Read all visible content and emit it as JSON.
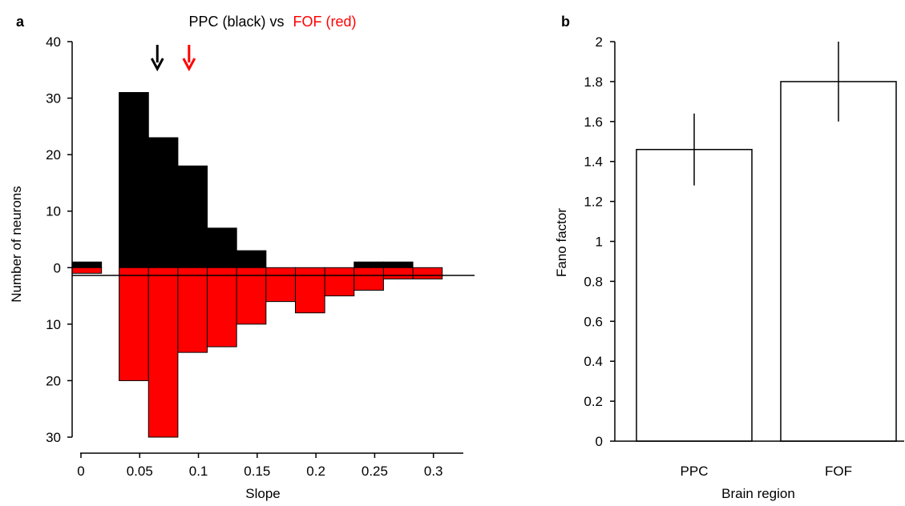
{
  "panel_labels": {
    "a": "a",
    "b": "b"
  },
  "colors": {
    "ppc": "#000000",
    "fof": "#ff0000",
    "bar_fill": "#ffffff"
  },
  "chart_data": [
    {
      "type": "bar",
      "panel": "a",
      "title_parts": [
        {
          "text": "PPC (black) vs",
          "color": "#000000"
        },
        {
          "text": "FOF (red)",
          "color": "#ff0000"
        }
      ],
      "xlabel": "Slope",
      "ylabel": "Number of neurons",
      "xlim": [
        -0.0075,
        0.335
      ],
      "xticks": [
        0,
        0.05,
        0.1,
        0.15,
        0.2,
        0.25,
        0.3
      ],
      "xtick_labels": [
        "0",
        "0.05",
        "0.1",
        "0.15",
        "0.2",
        "0.25",
        "0.3"
      ],
      "ylim": [
        -30,
        40
      ],
      "yticks": [
        40,
        30,
        20,
        10,
        0,
        -10,
        -20,
        -30
      ],
      "ytick_labels": [
        "40",
        "30",
        "20",
        "10",
        "0",
        "10",
        "20",
        "30"
      ],
      "bin_width": 0.025,
      "series": [
        {
          "name": "PPC",
          "color": "#000000",
          "direction": "up",
          "bin_starts": [
            -0.0075,
            0.0325,
            0.0575,
            0.0825,
            0.1075,
            0.1325,
            0.2325,
            0.2575
          ],
          "values": [
            1,
            31,
            23,
            18,
            7,
            3,
            1,
            1
          ]
        },
        {
          "name": "FOF",
          "color": "#ff0000",
          "direction": "down",
          "bin_starts": [
            -0.0075,
            0.0325,
            0.0575,
            0.0825,
            0.1075,
            0.1325,
            0.1575,
            0.1825,
            0.2075,
            0.2325,
            0.2575,
            0.2825
          ],
          "values": [
            1,
            20,
            30,
            15,
            14,
            10,
            6,
            8,
            5,
            4,
            2,
            2
          ]
        }
      ],
      "arrows": [
        {
          "x": 0.065,
          "color": "#000000"
        },
        {
          "x": 0.092,
          "color": "#ff0000"
        }
      ]
    },
    {
      "type": "bar",
      "panel": "b",
      "xlabel": "Brain region",
      "ylabel": "Fano factor",
      "categories": [
        "PPC",
        "FOF"
      ],
      "values": [
        1.46,
        1.8
      ],
      "error_low": [
        1.28,
        1.6
      ],
      "error_high": [
        1.64,
        2.0
      ],
      "ylim": [
        0,
        2
      ],
      "yticks": [
        0,
        0.2,
        0.4,
        0.6,
        0.8,
        1,
        1.2,
        1.4,
        1.6,
        1.8,
        2
      ],
      "ytick_labels": [
        "0",
        "0.2",
        "0.4",
        "0.6",
        "0.8",
        "1",
        "1.2",
        "1.4",
        "1.6",
        "1.8",
        "2"
      ]
    }
  ]
}
